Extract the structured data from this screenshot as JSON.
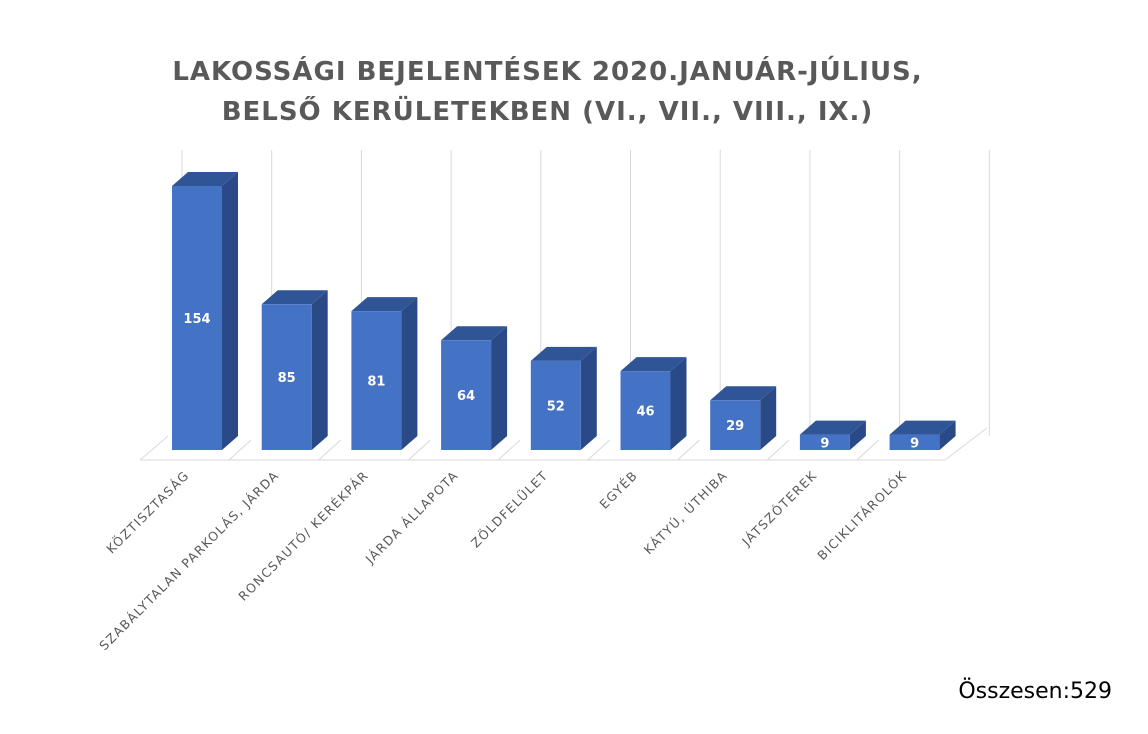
{
  "chart_data": {
    "type": "bar",
    "title_lines": [
      "LAKOSSÁGI BEJELENTÉSEK 2020.JANUÁR-JÚLIUS,",
      "BELSŐ KERÜLETEKBEN (VI., VII., VIII., IX.)"
    ],
    "categories": [
      "KÖZTISZTASÁG",
      "SZABÁLYTALAN PARKOLÁS, JÁRDA",
      "RONCSAUTÓ/ KERÉKPÁR",
      "JÁRDA ÁLLAPOTA",
      "ZÖLDFELÜLET",
      "EGYÉB",
      "KÁTYÚ, ÚTHIBA",
      "JÁTSZÓTEREK",
      "BICIKLITÁROLÓK"
    ],
    "values": [
      154,
      85,
      81,
      64,
      52,
      46,
      29,
      9,
      9
    ],
    "value_labels": [
      "154",
      "85",
      "81",
      "64",
      "52",
      "46",
      "29",
      "9",
      "9"
    ],
    "ylim": [
      0,
      154
    ],
    "grid": true,
    "legend": "none",
    "style": "3d-column",
    "colors": {
      "bar_front": "#4472C4",
      "bar_top": "#2F5597",
      "bar_side": "#2A4A87",
      "gridline": "#D9D9D9",
      "title": "#595959",
      "axis_text": "#595959",
      "data_label": "#FFFFFF"
    }
  },
  "footer": {
    "total_label": "Összesen:529"
  }
}
